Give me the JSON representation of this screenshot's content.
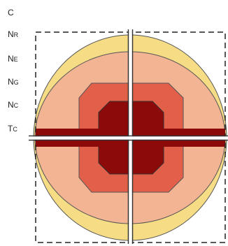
{
  "labels": {
    "c": {
      "main": "C",
      "sub": ""
    },
    "n_r": {
      "main": "N",
      "sub": "R"
    },
    "n_e": {
      "main": "N",
      "sub": "E"
    },
    "n_g": {
      "main": "N",
      "sub": "G"
    },
    "n_c": {
      "main": "N",
      "sub": "C"
    },
    "t_c": {
      "main": "T",
      "sub": "C"
    }
  },
  "colors": {
    "outer_yellow": "#f6dd85",
    "peach": "#f3b494",
    "red": "#e2604a",
    "dark_red": "#8c0a0a",
    "tube_bar": "#8c0a0a",
    "lines": "#333333"
  }
}
